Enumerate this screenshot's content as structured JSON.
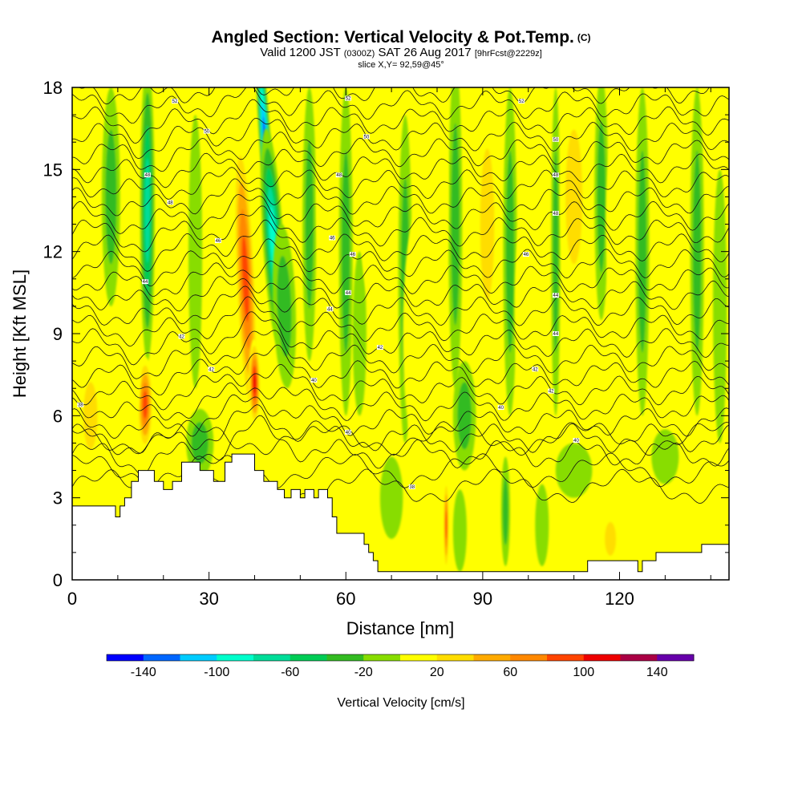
{
  "title": "Angled Section: Vertical Velocity & Pot.Temp.",
  "title_units": "(C)",
  "subtitle": {
    "valid": "Valid 1200 JST",
    "utc": "(0300Z)",
    "date": "SAT 26 Aug 2017",
    "forecast": "[9hrFcst@2229z]"
  },
  "slice_info": "slice X,Y= 92,59@45°",
  "chart_data": {
    "type": "heatmap",
    "xlabel": "Distance [nm]",
    "ylabel": "Height [Kft MSL]",
    "xlim": [
      0,
      144
    ],
    "ylim": [
      0,
      18
    ],
    "x_ticks": [
      0,
      30,
      60,
      90,
      120
    ],
    "y_ticks": [
      0,
      3,
      6,
      9,
      12,
      15,
      18
    ],
    "colorbar": {
      "label": "Vertical Velocity [cm/s]",
      "bounds": [
        -160,
        160
      ],
      "tick_values": [
        -140,
        -100,
        -60,
        -20,
        20,
        60,
        100,
        140
      ],
      "tick_labels": [
        "-140",
        "-100",
        "-60",
        "-20",
        "20",
        "60",
        "100",
        "140"
      ],
      "bins": [
        {
          "from": -160,
          "to": -140,
          "color": "#0000ff"
        },
        {
          "from": -140,
          "to": -120,
          "color": "#0066ff"
        },
        {
          "from": -120,
          "to": -100,
          "color": "#00ccff"
        },
        {
          "from": -100,
          "to": -80,
          "color": "#00ffcc"
        },
        {
          "from": -80,
          "to": -60,
          "color": "#00dd99"
        },
        {
          "from": -60,
          "to": -40,
          "color": "#00cc55"
        },
        {
          "from": -40,
          "to": -20,
          "color": "#33bb22"
        },
        {
          "from": -20,
          "to": 0,
          "color": "#88dd00"
        },
        {
          "from": 0,
          "to": 20,
          "color": "#ffff00"
        },
        {
          "from": 20,
          "to": 40,
          "color": "#ffdd00"
        },
        {
          "from": 40,
          "to": 60,
          "color": "#ffaa00"
        },
        {
          "from": 60,
          "to": 80,
          "color": "#ff8800"
        },
        {
          "from": 80,
          "to": 100,
          "color": "#ff4400"
        },
        {
          "from": 100,
          "to": 120,
          "color": "#ee0000"
        },
        {
          "from": 120,
          "to": 140,
          "color": "#aa0044"
        },
        {
          "from": 140,
          "to": 160,
          "color": "#6600aa"
        }
      ]
    },
    "terrain": [
      [
        0,
        2.7
      ],
      [
        5,
        2.7
      ],
      [
        9.5,
        2.7
      ],
      [
        9.5,
        2.3
      ],
      [
        10.5,
        2.3
      ],
      [
        10.5,
        2.7
      ],
      [
        11.5,
        2.7
      ],
      [
        11.5,
        3.0
      ],
      [
        13,
        3.0
      ],
      [
        13,
        3.6
      ],
      [
        14.5,
        3.6
      ],
      [
        14.5,
        4.0
      ],
      [
        18,
        4.0
      ],
      [
        18,
        3.6
      ],
      [
        20,
        3.6
      ],
      [
        20,
        3.3
      ],
      [
        22,
        3.3
      ],
      [
        22,
        3.6
      ],
      [
        24,
        3.6
      ],
      [
        24,
        4.3
      ],
      [
        28,
        4.3
      ],
      [
        28,
        4.0
      ],
      [
        31,
        4.0
      ],
      [
        31,
        3.6
      ],
      [
        33.5,
        3.6
      ],
      [
        33.5,
        4.3
      ],
      [
        35,
        4.3
      ],
      [
        35,
        4.6
      ],
      [
        37,
        4.6
      ],
      [
        39,
        4.6
      ],
      [
        40,
        4.6
      ],
      [
        40,
        4.0
      ],
      [
        42,
        4.0
      ],
      [
        42,
        3.6
      ],
      [
        45,
        3.6
      ],
      [
        45,
        3.3
      ],
      [
        46.5,
        3.3
      ],
      [
        46.5,
        3.0
      ],
      [
        48,
        3.0
      ],
      [
        48,
        3.3
      ],
      [
        50,
        3.3
      ],
      [
        50,
        3.0
      ],
      [
        51,
        3.0
      ],
      [
        51,
        3.3
      ],
      [
        53,
        3.3
      ],
      [
        53,
        3.0
      ],
      [
        54,
        3.0
      ],
      [
        54,
        3.3
      ],
      [
        56,
        3.3
      ],
      [
        56,
        3.0
      ],
      [
        57,
        3.0
      ],
      [
        57,
        2.3
      ],
      [
        58,
        2.3
      ],
      [
        58,
        1.7
      ],
      [
        60,
        1.7
      ],
      [
        64,
        1.7
      ],
      [
        64,
        1.3
      ],
      [
        65,
        1.3
      ],
      [
        65,
        1.0
      ],
      [
        66,
        1.0
      ],
      [
        66,
        0.7
      ],
      [
        67,
        0.7
      ],
      [
        67,
        0.3
      ],
      [
        68,
        0.3
      ],
      [
        68,
        0.3
      ],
      [
        80,
        0.3
      ],
      [
        100,
        0.3
      ],
      [
        113,
        0.3
      ],
      [
        113,
        0.7
      ],
      [
        120,
        0.7
      ],
      [
        124,
        0.7
      ],
      [
        124,
        0.3
      ],
      [
        125,
        0.3
      ],
      [
        125,
        0.7
      ],
      [
        128,
        0.7
      ],
      [
        128,
        1.0
      ],
      [
        138,
        1.0
      ],
      [
        138,
        1.3
      ],
      [
        144,
        1.3
      ]
    ],
    "velocity_features": [
      {
        "x": 42.5,
        "y": 15.5,
        "width": 2.6,
        "height": 9.5,
        "tilt": -4.0,
        "value": -150
      },
      {
        "x": 44,
        "y": 12.5,
        "width": 4.5,
        "height": 8,
        "tilt": -3.5,
        "value": -100
      },
      {
        "x": 46.5,
        "y": 10,
        "width": 5,
        "height": 6,
        "tilt": -2,
        "value": -40
      },
      {
        "x": 38,
        "y": 11,
        "width": 4.5,
        "height": 11,
        "tilt": -2.5,
        "value": 90
      },
      {
        "x": 40,
        "y": 7.2,
        "width": 2.6,
        "height": 3.2,
        "tilt": -0.5,
        "value": 115
      },
      {
        "x": 16.5,
        "y": 13.5,
        "width": 3.2,
        "height": 11,
        "tilt": 0,
        "value": -85
      },
      {
        "x": 16,
        "y": 6.4,
        "width": 3.5,
        "height": 3.5,
        "tilt": 0,
        "value": 90
      },
      {
        "x": 12,
        "y": 8,
        "width": 6,
        "height": 6,
        "tilt": 0,
        "value": 20
      },
      {
        "x": 8.5,
        "y": 14,
        "width": 4,
        "height": 8,
        "tilt": 0,
        "value": -30
      },
      {
        "x": 22,
        "y": 14,
        "width": 6,
        "height": 8,
        "tilt": 0,
        "value": 25
      },
      {
        "x": 27,
        "y": 12,
        "width": 3,
        "height": 10,
        "tilt": 0,
        "value": -25
      },
      {
        "x": 32,
        "y": 10,
        "width": 4,
        "height": 8,
        "tilt": 0,
        "value": 25
      },
      {
        "x": 28,
        "y": 5,
        "width": 6,
        "height": 2.5,
        "tilt": 0,
        "value": -30
      },
      {
        "x": 4,
        "y": 6,
        "width": 5,
        "height": 4,
        "tilt": 0,
        "value": 35
      },
      {
        "x": 2,
        "y": 12,
        "width": 4,
        "height": 10,
        "tilt": 0,
        "value": 10
      },
      {
        "x": 52,
        "y": 13,
        "width": 3,
        "height": 10,
        "tilt": 0,
        "value": -30
      },
      {
        "x": 56,
        "y": 14,
        "width": 5,
        "height": 8,
        "tilt": 0,
        "value": 20
      },
      {
        "x": 60,
        "y": 12,
        "width": 3,
        "height": 12,
        "tilt": 0,
        "value": -30
      },
      {
        "x": 63,
        "y": 9,
        "width": 3,
        "height": 6,
        "tilt": 0,
        "value": -15
      },
      {
        "x": 66,
        "y": 14,
        "width": 6,
        "height": 8,
        "tilt": 0,
        "value": 25
      },
      {
        "x": 73,
        "y": 11,
        "width": 3,
        "height": 12,
        "tilt": 0,
        "value": -35
      },
      {
        "x": 76,
        "y": 9,
        "width": 7,
        "height": 9,
        "tilt": 0,
        "value": 15
      },
      {
        "x": 84,
        "y": 13,
        "width": 3,
        "height": 12,
        "tilt": 0,
        "value": -35
      },
      {
        "x": 86,
        "y": 6,
        "width": 5,
        "height": 4,
        "tilt": 0,
        "value": -40
      },
      {
        "x": 80,
        "y": 14,
        "width": 5,
        "height": 8,
        "tilt": 0,
        "value": 25
      },
      {
        "x": 91,
        "y": 13,
        "width": 5,
        "height": 9,
        "tilt": 0,
        "value": 30
      },
      {
        "x": 96,
        "y": 12,
        "width": 3,
        "height": 12,
        "tilt": 0,
        "value": -30
      },
      {
        "x": 100,
        "y": 10,
        "width": 6,
        "height": 8,
        "tilt": 0,
        "value": 20
      },
      {
        "x": 106,
        "y": 12,
        "width": 2,
        "height": 12,
        "tilt": 0,
        "value": -35
      },
      {
        "x": 110,
        "y": 14,
        "width": 6,
        "height": 8,
        "tilt": 0,
        "value": 30
      },
      {
        "x": 116,
        "y": 14,
        "width": 3,
        "height": 9,
        "tilt": 0,
        "value": -30
      },
      {
        "x": 120,
        "y": 13,
        "width": 6,
        "height": 8,
        "tilt": 0,
        "value": 25
      },
      {
        "x": 125,
        "y": 12,
        "width": 3,
        "height": 12,
        "tilt": 0,
        "value": -30
      },
      {
        "x": 131,
        "y": 14,
        "width": 4,
        "height": 8,
        "tilt": 0,
        "value": 20
      },
      {
        "x": 137,
        "y": 12,
        "width": 3,
        "height": 12,
        "tilt": 0,
        "value": -30
      },
      {
        "x": 142,
        "y": 10,
        "width": 3,
        "height": 10,
        "tilt": 0,
        "value": -25
      },
      {
        "x": 70,
        "y": 3,
        "width": 5,
        "height": 3,
        "tilt": 0,
        "value": -20
      },
      {
        "x": 82,
        "y": 2,
        "width": 1.2,
        "height": 3.5,
        "tilt": 0,
        "value": 90
      },
      {
        "x": 85,
        "y": 1.8,
        "width": 3,
        "height": 3,
        "tilt": 0,
        "value": -15
      },
      {
        "x": 95,
        "y": 2.5,
        "width": 2,
        "height": 4,
        "tilt": 0,
        "value": -35
      },
      {
        "x": 110,
        "y": 4,
        "width": 8,
        "height": 2,
        "tilt": 0,
        "value": -20
      },
      {
        "x": 130,
        "y": 4.5,
        "width": 6,
        "height": 2,
        "tilt": 0,
        "value": -20
      },
      {
        "x": 118,
        "y": 1.5,
        "width": 4,
        "height": 2,
        "tilt": 0,
        "value": 30
      },
      {
        "x": 103,
        "y": 2,
        "width": 3,
        "height": 3,
        "tilt": 0,
        "value": -25
      }
    ],
    "theta_contours": {
      "count": 24,
      "base_height": 4.6,
      "spacing": 0.58
    },
    "contour_labels": [
      {
        "x": 1.8,
        "y": 6.4,
        "text": "38"
      },
      {
        "x": 16,
        "y": 10.9,
        "text": "44"
      },
      {
        "x": 16.5,
        "y": 14.8,
        "text": "48"
      },
      {
        "x": 21.5,
        "y": 13.8,
        "text": "48"
      },
      {
        "x": 22.5,
        "y": 17.5,
        "text": "52"
      },
      {
        "x": 29.5,
        "y": 16.4,
        "text": "50"
      },
      {
        "x": 32,
        "y": 12.4,
        "text": "46"
      },
      {
        "x": 24,
        "y": 8.9,
        "text": "42"
      },
      {
        "x": 30.5,
        "y": 7.7,
        "text": "42"
      },
      {
        "x": 53,
        "y": 7.3,
        "text": "40"
      },
      {
        "x": 56.5,
        "y": 9.9,
        "text": "44"
      },
      {
        "x": 57,
        "y": 12.5,
        "text": "46"
      },
      {
        "x": 58.5,
        "y": 14.8,
        "text": "48"
      },
      {
        "x": 60.5,
        "y": 10.5,
        "text": "44"
      },
      {
        "x": 61.5,
        "y": 11.9,
        "text": "46"
      },
      {
        "x": 60.5,
        "y": 5.4,
        "text": "40"
      },
      {
        "x": 60.5,
        "y": 17.6,
        "text": "52"
      },
      {
        "x": 64.5,
        "y": 16.2,
        "text": "50"
      },
      {
        "x": 67.5,
        "y": 8.5,
        "text": "42"
      },
      {
        "x": 74.5,
        "y": 3.4,
        "text": "38"
      },
      {
        "x": 94,
        "y": 6.3,
        "text": "40"
      },
      {
        "x": 98.5,
        "y": 17.5,
        "text": "52"
      },
      {
        "x": 99.5,
        "y": 11.9,
        "text": "46"
      },
      {
        "x": 101.5,
        "y": 7.7,
        "text": "42"
      },
      {
        "x": 105,
        "y": 6.9,
        "text": "42"
      },
      {
        "x": 106,
        "y": 16.1,
        "text": "50"
      },
      {
        "x": 106,
        "y": 14.8,
        "text": "48"
      },
      {
        "x": 106,
        "y": 13.4,
        "text": "48"
      },
      {
        "x": 106,
        "y": 10.4,
        "text": "44"
      },
      {
        "x": 106,
        "y": 9.0,
        "text": "44"
      },
      {
        "x": 110.5,
        "y": 5.1,
        "text": "40"
      }
    ]
  }
}
